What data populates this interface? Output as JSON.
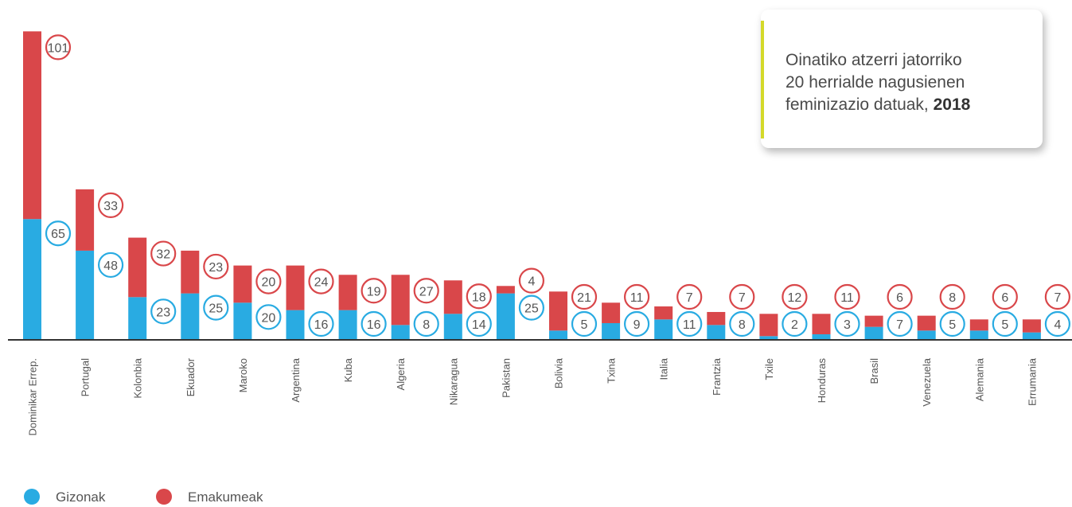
{
  "title": {
    "line1": "Oinatiko atzerri jatorriko",
    "line2": "20 herrialde nagusienen",
    "line3_prefix": "feminizazio datuak, ",
    "year": "2018"
  },
  "colors": {
    "gizonak": "#29abe2",
    "emakumeak": "#d9474a",
    "accent": "#d4d92a"
  },
  "chart_data": {
    "type": "bar",
    "stacked": true,
    "categories": [
      "Dominikar Errep.",
      "Portugal",
      "Kolonbia",
      "Ekuador",
      "Maroko",
      "Argentina",
      "Kuba",
      "Algeria",
      "Nikaragua",
      "Pakistan",
      "Bolivia",
      "Txina",
      "Italia",
      "Frantzia",
      "Txile",
      "Honduras",
      "Brasil",
      "Venezuela",
      "Alemania",
      "Errumania"
    ],
    "series": [
      {
        "name": "Gizonak",
        "color": "#29abe2",
        "values": [
          65,
          48,
          23,
          25,
          20,
          16,
          16,
          8,
          14,
          25,
          5,
          9,
          11,
          8,
          2,
          3,
          7,
          5,
          5,
          4
        ]
      },
      {
        "name": "Emakumeak",
        "color": "#d9474a",
        "values": [
          101,
          33,
          32,
          23,
          20,
          24,
          19,
          27,
          18,
          4,
          21,
          11,
          7,
          7,
          12,
          11,
          6,
          8,
          6,
          7
        ]
      }
    ],
    "legend_position": "bottom-left",
    "grid": false
  }
}
